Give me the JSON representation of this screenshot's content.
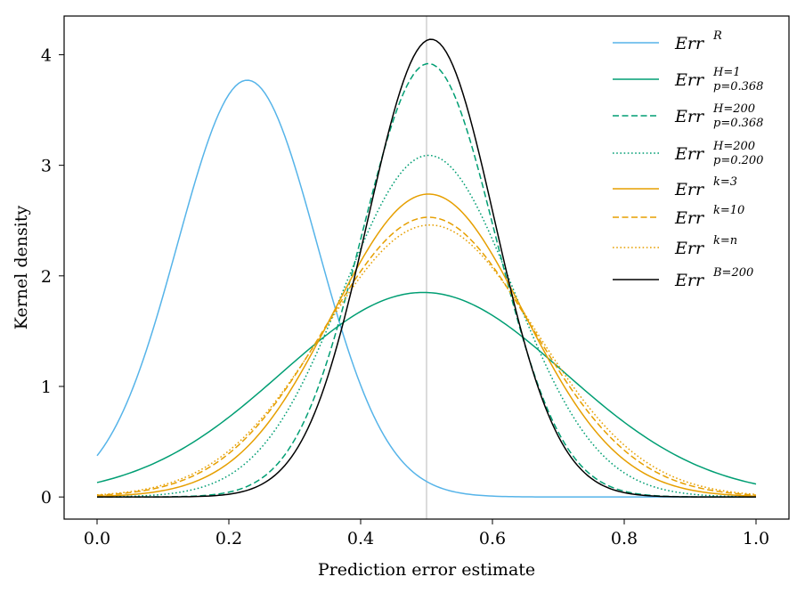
{
  "chart_data": {
    "type": "line",
    "xlabel": "Prediction error estimate",
    "ylabel": "Kernel density",
    "xlim": [
      -0.05,
      1.05
    ],
    "ylim": [
      -0.2,
      4.35
    ],
    "xticks": [
      0.0,
      0.2,
      0.4,
      0.6,
      0.8,
      1.0
    ],
    "xtick_labels": [
      "0.0",
      "0.2",
      "0.4",
      "0.6",
      "0.8",
      "1.0"
    ],
    "yticks": [
      0,
      1,
      2,
      3,
      4
    ],
    "ytick_labels": [
      "0",
      "1",
      "2",
      "3",
      "4"
    ],
    "grid": false,
    "legend_position": "top-right",
    "reference_line": {
      "orientation": "vertical",
      "x": 0.5,
      "color": "#c8c8c8"
    },
    "series": [
      {
        "name": "Err^R",
        "base": "Err",
        "sup": "R",
        "sub": "",
        "color": "#56b4e9",
        "style": "solid",
        "mu": 0.228,
        "sigma": 0.106,
        "peak": 3.77
      },
      {
        "name": "Err^{H=1}_{p=0.368}",
        "base": "Err",
        "sup": "H=1",
        "sub": "p=0.368",
        "color": "#009e73",
        "style": "solid",
        "mu": 0.495,
        "sigma": 0.215,
        "peak": 1.85
      },
      {
        "name": "Err^{H=200}_{p=0.368}",
        "base": "Err",
        "sup": "H=200",
        "sub": "p=0.368",
        "color": "#009e73",
        "style": "dashed",
        "mu": 0.503,
        "sigma": 0.101,
        "peak": 3.92
      },
      {
        "name": "Err^{H=200}_{p=0.200}",
        "base": "Err",
        "sup": "H=200",
        "sub": "p=0.200",
        "color": "#009e73",
        "style": "dotted",
        "mu": 0.503,
        "sigma": 0.129,
        "peak": 3.09
      },
      {
        "name": "Err^{k=3}",
        "base": "Err",
        "sup": "k=3",
        "sub": "",
        "color": "#e69f00",
        "style": "solid",
        "mu": 0.503,
        "sigma": 0.145,
        "peak": 2.74
      },
      {
        "name": "Err^{k=10}",
        "base": "Err",
        "sup": "k=10",
        "sub": "",
        "color": "#e69f00",
        "style": "dashed",
        "mu": 0.503,
        "sigma": 0.157,
        "peak": 2.53
      },
      {
        "name": "Err^{k=n}",
        "base": "Err",
        "sup": "k=n",
        "sub": "",
        "color": "#e69f00",
        "style": "dotted",
        "mu": 0.505,
        "sigma": 0.162,
        "peak": 2.46
      },
      {
        "name": "Err^{B=200}",
        "base": "Err",
        "sup": "B=200",
        "sub": "",
        "color": "#000000",
        "style": "solid",
        "mu": 0.507,
        "sigma": 0.096,
        "peak": 4.14
      }
    ]
  }
}
